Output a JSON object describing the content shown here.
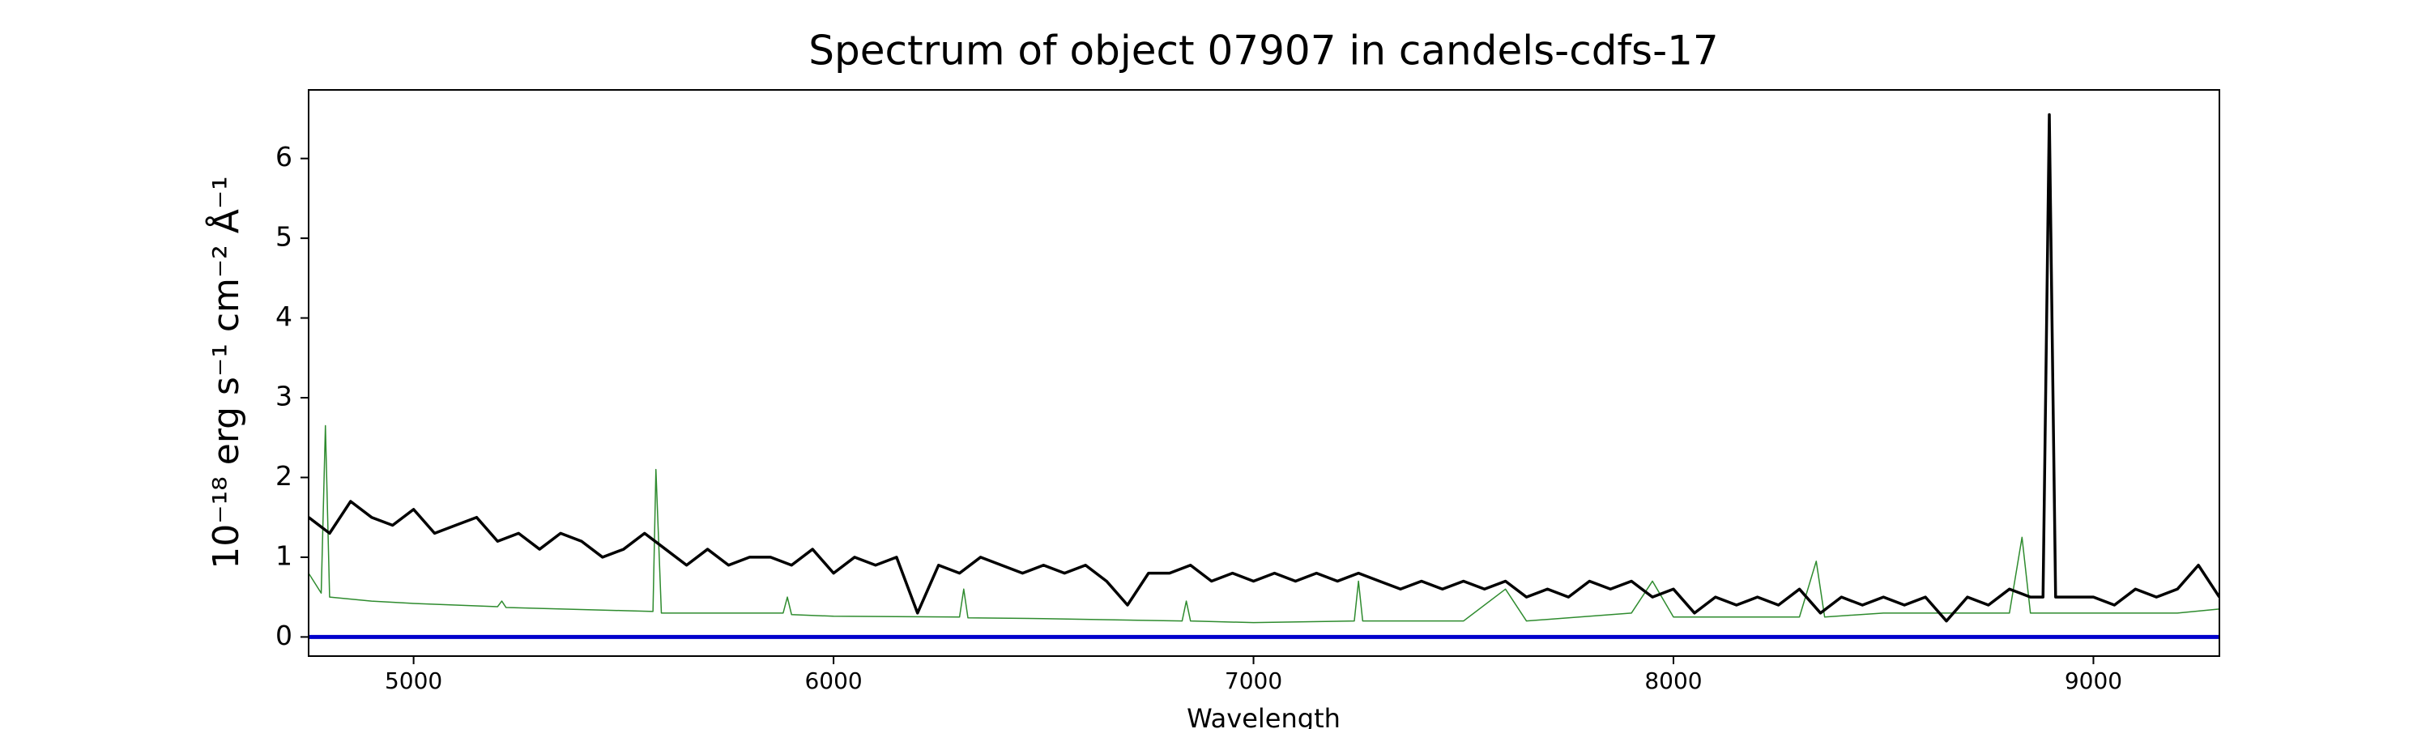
{
  "chart_data": {
    "type": "line",
    "title": "Spectrum of object 07907 in candels-cdfs-17",
    "xlabel": "Wavelength",
    "ylabel": "10⁻¹⁸ erg s⁻¹ cm⁻² Å⁻¹",
    "xlim": [
      4750,
      9300
    ],
    "ylim": [
      -0.24,
      6.86
    ],
    "xticks": [
      5000,
      6000,
      7000,
      8000,
      9000
    ],
    "yticks": [
      0,
      1,
      2,
      3,
      4,
      5,
      6
    ],
    "grid": false,
    "series": [
      {
        "color": "#2e8b2e",
        "width": 1.5,
        "x": [
          4750,
          4780,
          4790,
          4800,
          4900,
          5000,
          5200,
          5210,
          5220,
          5500,
          5570,
          5577,
          5590,
          5700,
          5880,
          5890,
          5900,
          6000,
          6300,
          6310,
          6320,
          6500,
          6830,
          6840,
          6850,
          7000,
          7240,
          7250,
          7260,
          7500,
          7600,
          7650,
          7900,
          7950,
          8000,
          8300,
          8340,
          8360,
          8500,
          8800,
          8830,
          8850,
          9000,
          9200,
          9300
        ],
        "values": [
          0.8,
          0.55,
          2.65,
          0.5,
          0.45,
          0.42,
          0.38,
          0.45,
          0.37,
          0.33,
          0.32,
          2.1,
          0.3,
          0.3,
          0.3,
          0.5,
          0.28,
          0.26,
          0.25,
          0.6,
          0.24,
          0.23,
          0.2,
          0.45,
          0.2,
          0.18,
          0.2,
          0.7,
          0.2,
          0.2,
          0.6,
          0.2,
          0.3,
          0.7,
          0.25,
          0.25,
          0.95,
          0.25,
          0.3,
          0.3,
          1.25,
          0.3,
          0.3,
          0.3,
          0.35
        ]
      },
      {
        "color": "#000000",
        "width": 3.5,
        "x": [
          4750,
          4800,
          4850,
          4900,
          4950,
          5000,
          5050,
          5100,
          5150,
          5200,
          5250,
          5300,
          5350,
          5400,
          5450,
          5500,
          5550,
          5600,
          5650,
          5700,
          5750,
          5800,
          5850,
          5900,
          5950,
          6000,
          6050,
          6100,
          6150,
          6200,
          6250,
          6300,
          6350,
          6400,
          6450,
          6500,
          6550,
          6600,
          6650,
          6700,
          6750,
          6800,
          6850,
          6900,
          6950,
          7000,
          7050,
          7100,
          7150,
          7200,
          7250,
          7300,
          7350,
          7400,
          7450,
          7500,
          7550,
          7600,
          7650,
          7700,
          7750,
          7800,
          7850,
          7900,
          7950,
          8000,
          8050,
          8100,
          8150,
          8200,
          8250,
          8300,
          8350,
          8400,
          8450,
          8500,
          8550,
          8600,
          8650,
          8700,
          8750,
          8800,
          8850,
          8880,
          8895,
          8910,
          8950,
          9000,
          9050,
          9100,
          9150,
          9200,
          9250,
          9300
        ],
        "values": [
          1.5,
          1.3,
          1.7,
          1.5,
          1.4,
          1.6,
          1.3,
          1.4,
          1.5,
          1.2,
          1.3,
          1.1,
          1.3,
          1.2,
          1.0,
          1.1,
          1.3,
          1.1,
          0.9,
          1.1,
          0.9,
          1.0,
          1.0,
          0.9,
          1.1,
          0.8,
          1.0,
          0.9,
          1.0,
          0.3,
          0.9,
          0.8,
          1.0,
          0.9,
          0.8,
          0.9,
          0.8,
          0.9,
          0.7,
          0.4,
          0.8,
          0.8,
          0.9,
          0.7,
          0.8,
          0.7,
          0.8,
          0.7,
          0.8,
          0.7,
          0.8,
          0.7,
          0.6,
          0.7,
          0.6,
          0.7,
          0.6,
          0.7,
          0.5,
          0.6,
          0.5,
          0.7,
          0.6,
          0.7,
          0.5,
          0.6,
          0.3,
          0.5,
          0.4,
          0.5,
          0.4,
          0.6,
          0.3,
          0.5,
          0.4,
          0.5,
          0.4,
          0.5,
          0.2,
          0.5,
          0.4,
          0.6,
          0.5,
          0.5,
          6.55,
          0.5,
          0.5,
          0.5,
          0.4,
          0.6,
          0.5,
          0.6,
          0.9,
          0.5
        ]
      },
      {
        "color": "#0000cc",
        "width": 5,
        "x": [
          4750,
          9300
        ],
        "values": [
          0,
          0
        ]
      }
    ]
  }
}
